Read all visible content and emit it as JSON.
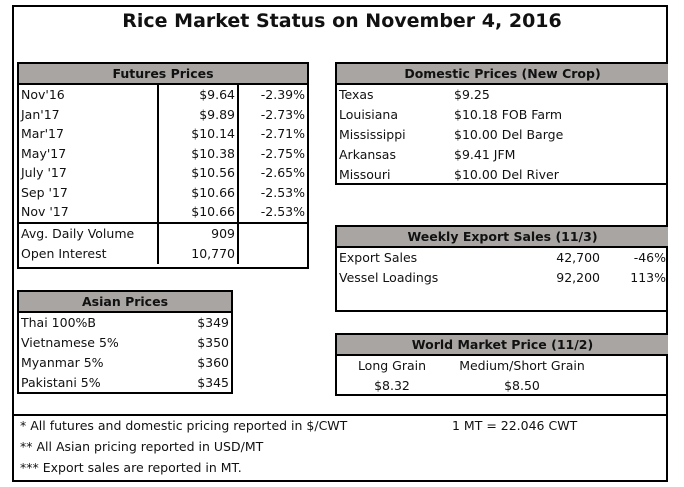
{
  "title": "Rice Market Status on November 4, 2016",
  "futures": {
    "header": "Futures Prices",
    "rows": [
      [
        "Nov'16",
        "$9.64",
        "-2.39%"
      ],
      [
        "Jan'17",
        "$9.89",
        "-2.73%"
      ],
      [
        "Mar'17",
        "$10.14",
        "-2.71%"
      ],
      [
        "May'17",
        "$10.38",
        "-2.75%"
      ],
      [
        "July '17",
        "$10.56",
        "-2.65%"
      ],
      [
        "Sep '17",
        "$10.66",
        "-2.53%"
      ],
      [
        "Nov '17",
        "$10.66",
        "-2.53%"
      ]
    ],
    "stats": [
      [
        "Avg. Daily Volume",
        "909"
      ],
      [
        "Open Interest",
        "10,770"
      ]
    ]
  },
  "asian": {
    "header": "Asian Prices",
    "rows": [
      [
        "Thai 100%B",
        "$349"
      ],
      [
        "Vietnamese 5%",
        "$350"
      ],
      [
        "Myanmar 5%",
        "$360"
      ],
      [
        "Pakistani 5%",
        "$345"
      ]
    ]
  },
  "domestic": {
    "header": "Domestic Prices (New Crop)",
    "rows": [
      [
        "Texas",
        "$9.25"
      ],
      [
        "Louisiana",
        "$10.18 FOB Farm"
      ],
      [
        "Mississippi",
        "$10.00 Del Barge"
      ],
      [
        "Arkansas",
        "$9.41 JFM"
      ],
      [
        "Missouri",
        "$10.00 Del River"
      ]
    ]
  },
  "exports": {
    "header": "Weekly Export Sales (11/3)",
    "rows": [
      [
        "Export Sales",
        "42,700",
        "-46%"
      ],
      [
        "Vessel Loadings",
        "92,200",
        "113%"
      ]
    ]
  },
  "world": {
    "header": "World Market Price (11/2)",
    "labels": [
      "Long Grain",
      "Medium/Short Grain"
    ],
    "values": [
      "$8.32",
      "$8.50"
    ]
  },
  "footnotes": [
    "* All futures and domestic pricing reported in $/CWT",
    "** All Asian pricing reported in USD/MT",
    "*** Export sales are reported in MT."
  ],
  "conversion": "1 MT = 22.046 CWT"
}
